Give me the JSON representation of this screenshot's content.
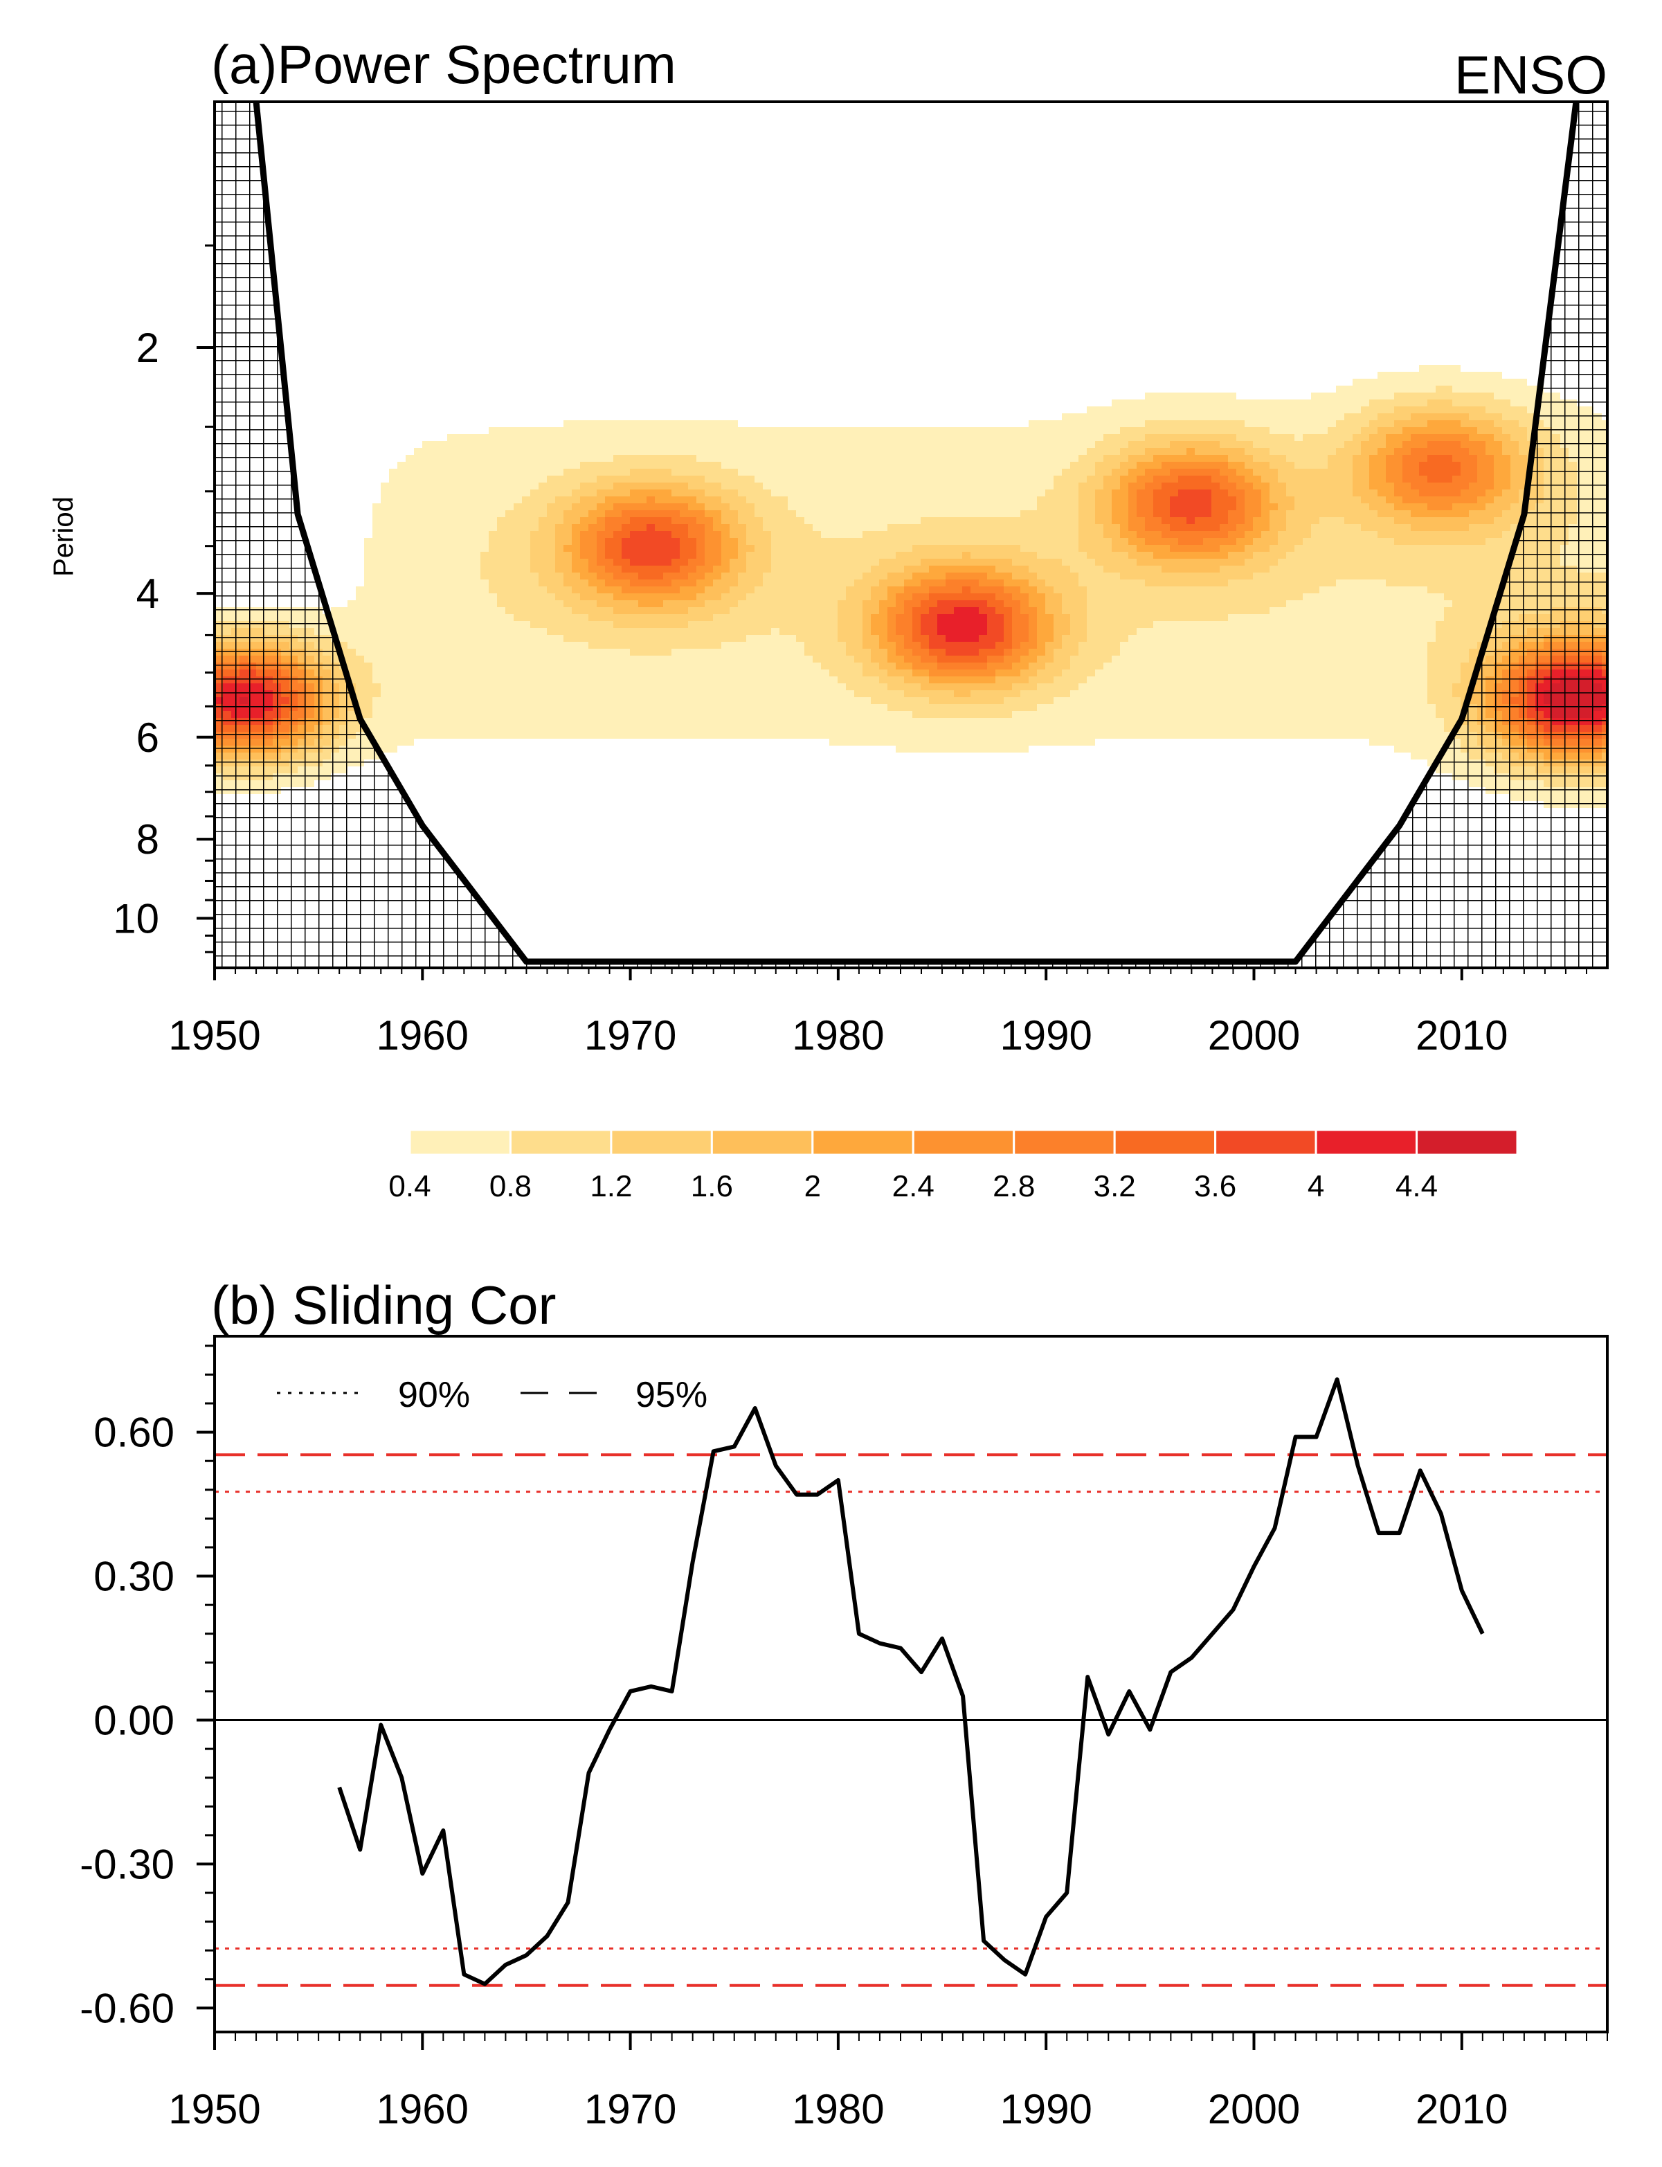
{
  "chart_data": [
    {
      "type": "heatmap",
      "panel_label": "(a)Power Spectrum",
      "corner_label": "ENSO",
      "ylabel": "Period",
      "xlim": [
        1950,
        2017
      ],
      "ylim": [
        1,
        11.5
      ],
      "x_ticks": [
        1950,
        1960,
        1970,
        1980,
        1990,
        2000,
        2010
      ],
      "y_ticks": [
        2,
        4,
        6,
        8,
        10
      ],
      "colorbar": {
        "labels": [
          "0.4",
          "0.8",
          "1.2",
          "1.6",
          "2",
          "2.4",
          "2.8",
          "3.2",
          "3.6",
          "4",
          "4.4"
        ],
        "levels": [
          0.4,
          0.8,
          1.2,
          1.6,
          2.0,
          2.4,
          2.8,
          3.2,
          3.6,
          4.0,
          4.4
        ],
        "colors": [
          "#fff0b8",
          "#fedd8c",
          "#fecf72",
          "#febf5a",
          "#fea83c",
          "#fd9230",
          "#fc802a",
          "#f86a22",
          "#f24a25",
          "#e8202a",
          "#d41e2b"
        ]
      },
      "cone_of_influence": [
        [
          1952,
          1
        ],
        [
          1954,
          3.2
        ],
        [
          1957,
          5.7
        ],
        [
          1960,
          7.7
        ],
        [
          1965,
          11.3
        ],
        [
          2002,
          11.3
        ],
        [
          2007,
          7.7
        ],
        [
          2010,
          5.7
        ],
        [
          2013,
          3.2
        ],
        [
          2015.5,
          1
        ]
      ],
      "power_peaks": [
        {
          "year": 1951.5,
          "period": 5.4,
          "power": 4.4
        },
        {
          "year": 1971,
          "period": 3.5,
          "power": 3.2
        },
        {
          "year": 1986,
          "period": 4.4,
          "power": 3.6
        },
        {
          "year": 1997,
          "period": 3.1,
          "power": 3.2
        },
        {
          "year": 2009,
          "period": 2.8,
          "power": 2.8
        },
        {
          "year": 2015.5,
          "period": 5.4,
          "power": 4.4
        }
      ]
    },
    {
      "type": "line",
      "panel_label": "(b) Sliding Cor",
      "xlim": [
        1950,
        2017
      ],
      "ylim": [
        -0.65,
        0.8
      ],
      "x_ticks": [
        1950,
        1960,
        1970,
        1980,
        1990,
        2000,
        2010
      ],
      "y_ticks": [
        -0.6,
        -0.3,
        0.0,
        0.3,
        0.6
      ],
      "y_tick_labels": [
        "-0.60",
        "-0.30",
        "0.00",
        "0.30",
        "0.60"
      ],
      "legend": [
        {
          "label": "90%",
          "style": "dotted"
        },
        {
          "label": "95%",
          "style": "dashed"
        }
      ],
      "thresholds": {
        "p90": 0.476,
        "p95": 0.553
      },
      "threshold_color": "#e8302a",
      "series": [
        {
          "name": "sliding correlation",
          "x": [
            1956,
            1957,
            1958,
            1959,
            1960,
            1961,
            1962,
            1963,
            1964,
            1965,
            1966,
            1967,
            1968,
            1969,
            1970,
            1971,
            1972,
            1973,
            1974,
            1975,
            1976,
            1977,
            1978,
            1979,
            1980,
            1981,
            1982,
            1983,
            1984,
            1985,
            1986,
            1987,
            1988,
            1989,
            1990,
            1991,
            1992,
            1993,
            1994,
            1995,
            1996,
            1997,
            1998,
            1999,
            2000,
            2001,
            2002,
            2003,
            2004,
            2005,
            2006,
            2007,
            2008,
            2009,
            2010,
            2011
          ],
          "values": [
            -0.14,
            -0.27,
            -0.01,
            -0.12,
            -0.32,
            -0.23,
            -0.53,
            -0.55,
            -0.51,
            -0.49,
            -0.45,
            -0.38,
            -0.11,
            -0.02,
            0.06,
            0.07,
            0.06,
            0.33,
            0.56,
            0.57,
            0.65,
            0.53,
            0.47,
            0.47,
            0.5,
            0.18,
            0.16,
            0.15,
            0.1,
            0.17,
            0.05,
            -0.46,
            -0.5,
            -0.53,
            -0.41,
            -0.36,
            0.09,
            -0.03,
            0.06,
            -0.02,
            0.1,
            0.13,
            0.18,
            0.23,
            0.32,
            0.4,
            0.59,
            0.59,
            0.71,
            0.53,
            0.39,
            0.39,
            0.52,
            0.43,
            0.27,
            0.18
          ]
        }
      ]
    }
  ]
}
